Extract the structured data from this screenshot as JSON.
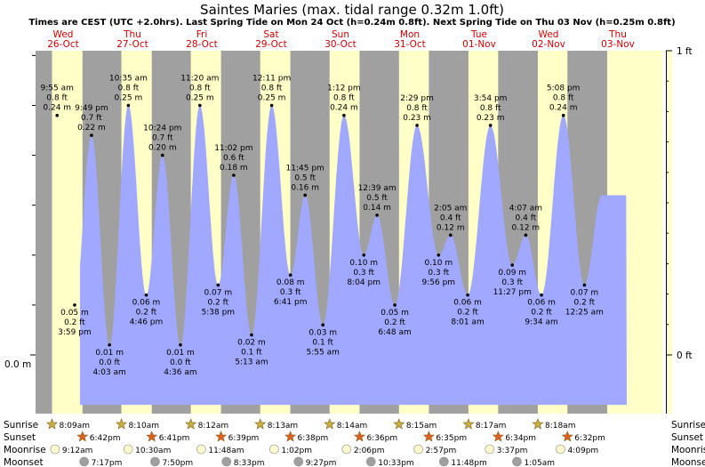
{
  "title": "Saintes Maries (max. tidal range 0.32m 1.0ft)",
  "subtitle": "Times are CEST (UTC +2.0hrs). Last Spring Tide on Mon 24 Oct (h=0.24m 0.8ft). Next Spring Tide on Thu 03 Nov (h=0.25m 0.8ft)",
  "days": [
    {
      "weekday": "Wed",
      "date": "26-Oct"
    },
    {
      "weekday": "Thu",
      "date": "27-Oct"
    },
    {
      "weekday": "Fri",
      "date": "28-Oct"
    },
    {
      "weekday": "Sat",
      "date": "29-Oct"
    },
    {
      "weekday": "Sun",
      "date": "30-Oct"
    },
    {
      "weekday": "Mon",
      "date": "31-Oct"
    },
    {
      "weekday": "Tue",
      "date": "01-Nov"
    },
    {
      "weekday": "Wed",
      "date": "02-Nov"
    },
    {
      "weekday": "Thu",
      "date": "03-Nov"
    }
  ],
  "chart_data": {
    "type": "area",
    "x_unit": "hours since 26-Oct 00:00 CEST",
    "ylim_m": [
      -0.03,
      0.335
    ],
    "left_axis": [
      {
        "value": 0,
        "label": "0.0 m"
      }
    ],
    "right_axis": [
      {
        "value": 0,
        "label": "0 ft"
      },
      {
        "value": 0.3048,
        "label": "1 ft"
      }
    ],
    "colors": {
      "day": "#ffffc8",
      "night": "#a0a0a0",
      "water": "#a0a8ff"
    },
    "extremes": [
      {
        "kind": "high",
        "time": "9:55 am",
        "m": "0.24 m",
        "ft": "0.8 ft",
        "value": 0.24
      },
      {
        "kind": "low",
        "time": "3:59 pm",
        "m": "0.05 m",
        "ft": "0.2 ft",
        "value": 0.05
      },
      {
        "kind": "high",
        "time": "9:49 pm",
        "m": "0.22 m",
        "ft": "0.7 ft",
        "value": 0.22
      },
      {
        "kind": "low",
        "time": "4:03 am",
        "m": "0.01 m",
        "ft": "0.0 ft",
        "value": 0.01
      },
      {
        "kind": "high",
        "time": "10:35 am",
        "m": "0.25 m",
        "ft": "0.8 ft",
        "value": 0.25
      },
      {
        "kind": "low",
        "time": "4:46 pm",
        "m": "0.06 m",
        "ft": "0.2 ft",
        "value": 0.06
      },
      {
        "kind": "high",
        "time": "10:24 pm",
        "m": "0.20 m",
        "ft": "0.7 ft",
        "value": 0.2
      },
      {
        "kind": "low",
        "time": "4:36 am",
        "m": "0.01 m",
        "ft": "0.0 ft",
        "value": 0.01
      },
      {
        "kind": "high",
        "time": "11:20 am",
        "m": "0.25 m",
        "ft": "0.8 ft",
        "value": 0.25
      },
      {
        "kind": "low",
        "time": "5:38 pm",
        "m": "0.07 m",
        "ft": "0.2 ft",
        "value": 0.07
      },
      {
        "kind": "high",
        "time": "11:02 pm",
        "m": "0.18 m",
        "ft": "0.6 ft",
        "value": 0.18
      },
      {
        "kind": "low",
        "time": "5:13 am",
        "m": "0.02 m",
        "ft": "0.1 ft",
        "value": 0.02
      },
      {
        "kind": "high",
        "time": "12:11 pm",
        "m": "0.25 m",
        "ft": "0.8 ft",
        "value": 0.25
      },
      {
        "kind": "low",
        "time": "6:41 pm",
        "m": "0.08 m",
        "ft": "0.3 ft",
        "value": 0.08
      },
      {
        "kind": "high",
        "time": "11:45 pm",
        "m": "0.16 m",
        "ft": "0.5 ft",
        "value": 0.16
      },
      {
        "kind": "low",
        "time": "5:55 am",
        "m": "0.03 m",
        "ft": "0.1 ft",
        "value": 0.03
      },
      {
        "kind": "high",
        "time": "1:12 pm",
        "m": "0.24 m",
        "ft": "0.8 ft",
        "value": 0.24
      },
      {
        "kind": "low",
        "time": "8:04 pm",
        "m": "0.10 m",
        "ft": "0.3 ft",
        "value": 0.1
      },
      {
        "kind": "high",
        "time": "12:39 am",
        "m": "0.14 m",
        "ft": "0.5 ft",
        "value": 0.14
      },
      {
        "kind": "low",
        "time": "6:48 am",
        "m": "0.05 m",
        "ft": "0.2 ft",
        "value": 0.05
      },
      {
        "kind": "high",
        "time": "2:29 pm",
        "m": "0.23 m",
        "ft": "0.8 ft",
        "value": 0.23
      },
      {
        "kind": "low",
        "time": "9:56 pm",
        "m": "0.10 m",
        "ft": "0.3 ft",
        "value": 0.1
      },
      {
        "kind": "high",
        "time": "2:05 am",
        "m": "0.12 m",
        "ft": "0.4 ft",
        "value": 0.12
      },
      {
        "kind": "low",
        "time": "8:01 am",
        "m": "0.06 m",
        "ft": "0.2 ft",
        "value": 0.06
      },
      {
        "kind": "high",
        "time": "3:54 pm",
        "m": "0.23 m",
        "ft": "0.8 ft",
        "value": 0.23
      },
      {
        "kind": "low",
        "time": "11:27 pm",
        "m": "0.09 m",
        "ft": "0.3 ft",
        "value": 0.09
      },
      {
        "kind": "high",
        "time": "4:07 am",
        "m": "0.12 m",
        "ft": "0.4 ft",
        "value": 0.12
      },
      {
        "kind": "low",
        "time": "9:34 am",
        "m": "0.06 m",
        "ft": "0.2 ft",
        "value": 0.06
      },
      {
        "kind": "high",
        "time": "5:08 pm",
        "m": "0.24 m",
        "ft": "0.8 ft",
        "value": 0.24
      },
      {
        "kind": "low",
        "time": "12:25 am",
        "m": "0.07 m",
        "ft": "0.2 ft",
        "value": 0.07
      }
    ]
  },
  "rows": {
    "sunrise_label": "Sunrise",
    "sunset_label": "Sunset",
    "moonrise_label": "Moonrise",
    "moonset_label": "Moonset",
    "sunrise": [
      "8:09am",
      "8:10am",
      "8:12am",
      "8:13am",
      "8:14am",
      "8:15am",
      "8:17am",
      "8:18am"
    ],
    "sunset": [
      "6:42pm",
      "6:41pm",
      "6:39pm",
      "6:38pm",
      "6:36pm",
      "6:35pm",
      "6:34pm",
      "6:32pm"
    ],
    "moonrise": [
      "9:12am",
      "10:30am",
      "11:48am",
      "1:02pm",
      "2:06pm",
      "2:57pm",
      "3:37pm",
      "4:09pm"
    ],
    "moonset": [
      "7:17pm",
      "7:50pm",
      "8:33pm",
      "9:27pm",
      "10:33pm",
      "11:48pm",
      "1:05am"
    ]
  }
}
